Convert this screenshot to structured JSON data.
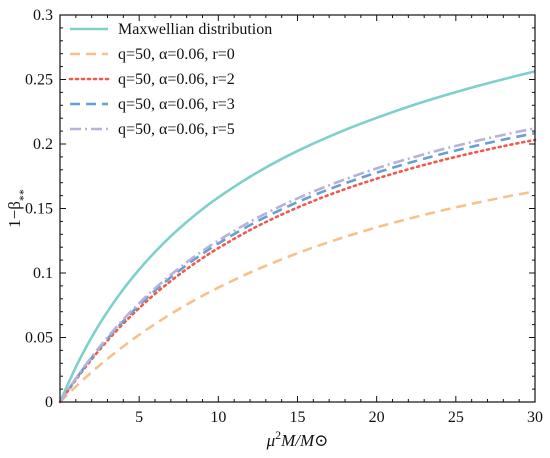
{
  "chart_data": {
    "type": "line",
    "xlabel": "μ²M/M⊙",
    "ylabel": "1−β**",
    "xlim": [
      0,
      30
    ],
    "ylim": [
      0,
      0.3
    ],
    "x_ticks": [
      5,
      10,
      15,
      20,
      25,
      30
    ],
    "y_ticks": [
      0,
      0.05,
      0.1,
      0.15,
      0.2,
      0.25,
      0.3
    ],
    "x_tick_labels": [
      "5",
      "10",
      "15",
      "20",
      "25",
      "30"
    ],
    "y_tick_labels": [
      "0",
      "0.05",
      "0.1",
      "0.15",
      "0.2",
      "0.25",
      "0.3"
    ],
    "grid": false,
    "legend_position": "top-left",
    "x": [
      0,
      1,
      2,
      3,
      4,
      5,
      6,
      7,
      8,
      9,
      10,
      12,
      14,
      16,
      18,
      20,
      22,
      24,
      26,
      28,
      30
    ],
    "series": [
      {
        "name": "Maxwellian distribution",
        "color": "#7fcfcb",
        "style": "solid",
        "values": [
          0.0,
          0.0271,
          0.0502,
          0.0701,
          0.0874,
          0.1027,
          0.1163,
          0.1285,
          0.1395,
          0.1495,
          0.1586,
          0.1746,
          0.1884,
          0.2003,
          0.2109,
          0.2203,
          0.2289,
          0.2366,
          0.2437,
          0.2502,
          0.2563
        ]
      },
      {
        "name": "q=50, α=0.06, r=0",
        "color": "#f6c28b",
        "style": "dashed",
        "values": [
          0.0,
          0.012,
          0.0232,
          0.0335,
          0.0431,
          0.0521,
          0.0604,
          0.0682,
          0.0755,
          0.0823,
          0.0887,
          0.1003,
          0.1106,
          0.1198,
          0.128,
          0.1354,
          0.142,
          0.1481,
          0.1536,
          0.1587,
          0.1633
        ]
      },
      {
        "name": "q=50, α=0.06, r=2",
        "color": "#ef5a4b",
        "style": "dotted",
        "values": [
          0.0,
          0.0172,
          0.0331,
          0.0476,
          0.0608,
          0.0728,
          0.0838,
          0.0938,
          0.1031,
          0.1115,
          0.1193,
          0.1333,
          0.1453,
          0.1558,
          0.165,
          0.1731,
          0.1804,
          0.187,
          0.1929,
          0.1983,
          0.2032
        ]
      },
      {
        "name": "q=50, α=0.06, r=3",
        "color": "#6aa0d0",
        "style": "dashed",
        "values": [
          0.0,
          0.0178,
          0.0342,
          0.0491,
          0.0627,
          0.0751,
          0.0864,
          0.0967,
          0.1062,
          0.1149,
          0.1229,
          0.1371,
          0.1494,
          0.1601,
          0.1695,
          0.1778,
          0.1852,
          0.1919,
          0.1979,
          0.2034,
          0.2084
        ]
      },
      {
        "name": "q=50, α=0.06, r=5",
        "color": "#b6b2da",
        "style": "dash-dot",
        "values": [
          0.0,
          0.0182,
          0.0349,
          0.0501,
          0.064,
          0.0766,
          0.0881,
          0.0986,
          0.1083,
          0.1171,
          0.1252,
          0.1397,
          0.1522,
          0.1631,
          0.1726,
          0.1811,
          0.1886,
          0.1954,
          0.2015,
          0.2071,
          0.2122
        ]
      }
    ]
  }
}
